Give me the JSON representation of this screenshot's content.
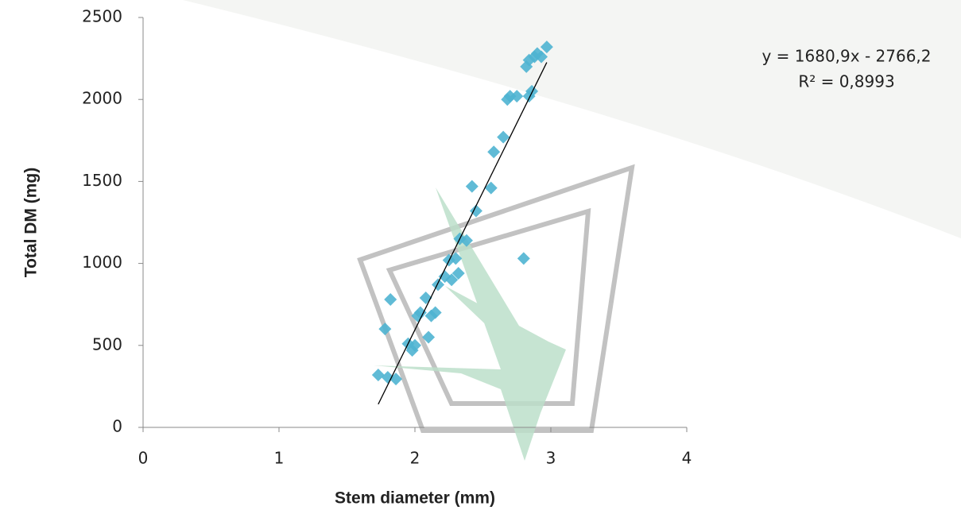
{
  "chart_data": {
    "type": "scatter",
    "x_label": "Stem diameter (mm)",
    "y_label": "Total DM (mg)",
    "color": "#4fb4d2",
    "x": [
      1.73,
      1.8,
      1.86,
      1.78,
      1.82,
      1.95,
      1.98,
      2.0,
      2.02,
      2.04,
      2.08,
      2.1,
      2.12,
      2.15,
      2.17,
      2.22,
      2.25,
      2.27,
      2.3,
      2.32,
      2.33,
      2.38,
      2.42,
      2.45,
      2.56,
      2.58,
      2.65,
      2.68,
      2.7,
      2.75,
      2.8,
      2.82,
      2.84,
      2.86,
      2.88,
      2.9,
      2.93,
      2.97,
      2.84
    ],
    "y": [
      320,
      305,
      295,
      600,
      780,
      510,
      470,
      500,
      680,
      700,
      790,
      550,
      680,
      700,
      870,
      920,
      1020,
      900,
      1030,
      940,
      1150,
      1140,
      1470,
      1320,
      1460,
      1680,
      1770,
      2000,
      2020,
      2020,
      1030,
      2200,
      2020,
      2050,
      2260,
      2280,
      2260,
      2320,
      2240
    ],
    "trendline": {
      "x": [
        1.73,
        2.97
      ],
      "y": [
        141,
        2226
      ],
      "equation": "y = 1680,9x - 2766,2",
      "r2": "R² = 0,8993"
    },
    "xlim": [
      0,
      4
    ],
    "xticks": [
      0,
      1,
      2,
      3,
      4
    ],
    "ylim": [
      0,
      2500
    ],
    "yticks": [
      0,
      500,
      1000,
      1500,
      2000,
      2500
    ]
  }
}
